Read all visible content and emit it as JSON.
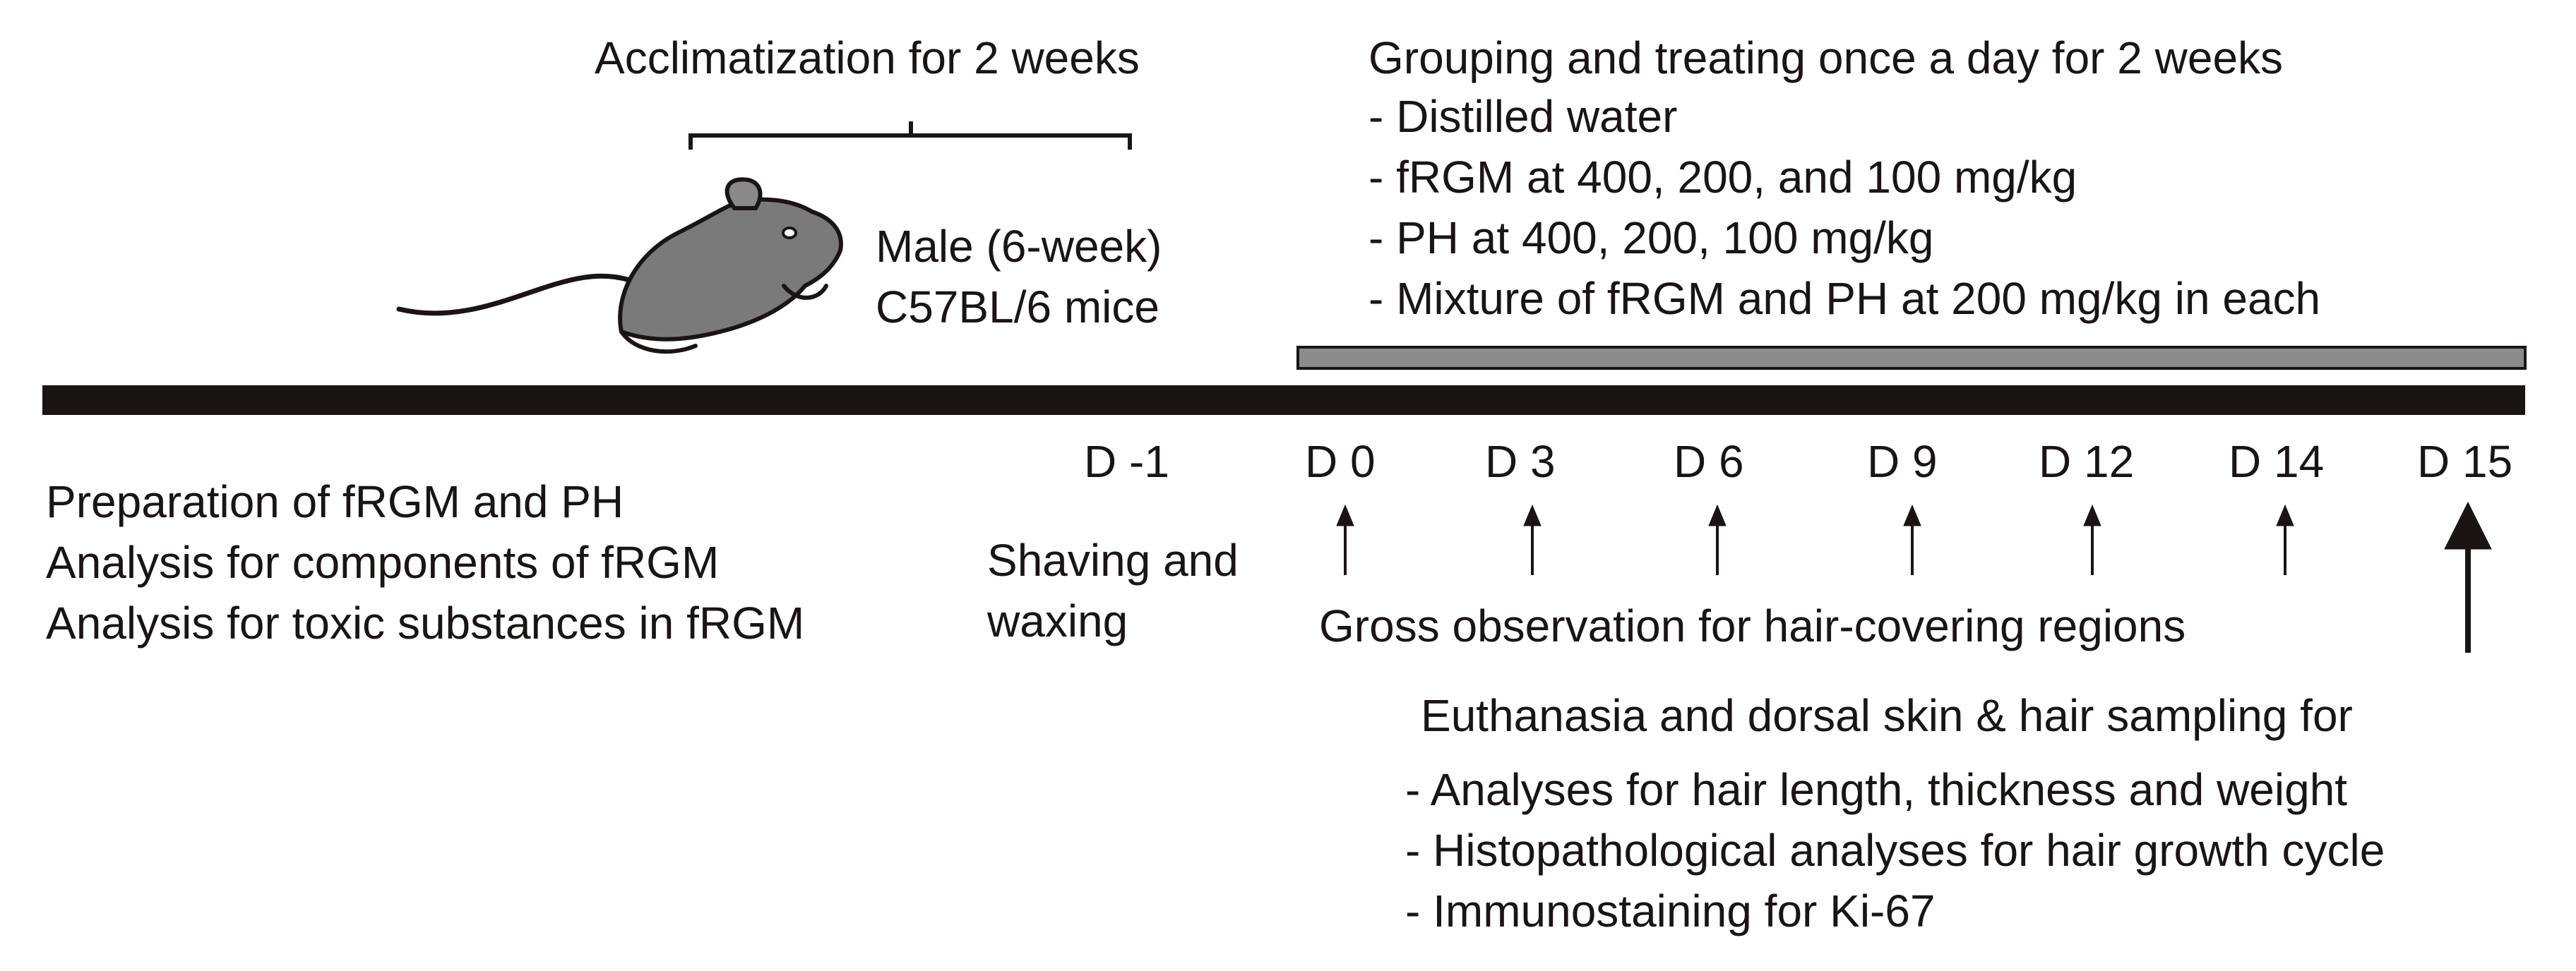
{
  "acclimatization": {
    "title": "Acclimatization for 2 weeks"
  },
  "mouse": {
    "line1": "Male (6-week)",
    "line2": "C57BL/6 mice"
  },
  "treatment": {
    "title": "Grouping and treating once a day for 2 weeks",
    "items": [
      "- Distilled water",
      "- fRGM at 400, 200, and 100 mg/kg",
      "- PH at 400, 200, 100 mg/kg",
      "- Mixture of fRGM and PH at 200 mg/kg in each"
    ]
  },
  "preparation": {
    "lines": [
      "Preparation of fRGM and PH",
      "Analysis for components of fRGM",
      "Analysis for toxic substances in fRGM"
    ]
  },
  "shaving": {
    "line1": "Shaving and",
    "line2": "waxing"
  },
  "days": [
    "D -1",
    "D 0",
    "D 3",
    "D 6",
    "D 9",
    "D 12",
    "D 14",
    "D 15"
  ],
  "observation": {
    "label": "Gross observation for hair-covering regions"
  },
  "euthanasia": {
    "title": "Euthanasia and dorsal skin & hair sampling for",
    "items": [
      "- Analyses for hair length, thickness and weight",
      "- Histopathological analyses for hair growth cycle",
      "- Immunostaining for Ki-67"
    ]
  },
  "colors": {
    "timeline": "#1a1414",
    "treatment_bar": "#8c8c8c",
    "mouse_body": "#7a7a7a"
  }
}
